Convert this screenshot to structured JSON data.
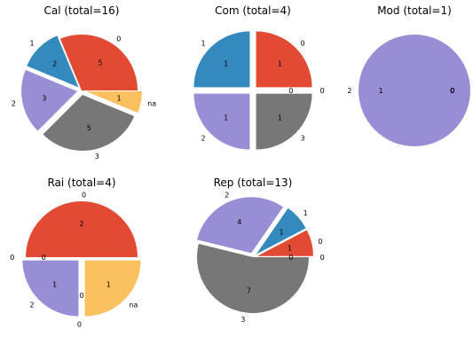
{
  "colors": {
    "0": "#E24A33",
    "1": "#348ABD",
    "2": "#988ED5",
    "3": "#777777",
    "na": "#FBC15E"
  },
  "chart_data": [
    {
      "type": "pie",
      "title": "Cal (total=16)",
      "slices": [
        {
          "label": "0",
          "value": 5,
          "exploded": false
        },
        {
          "label": "1",
          "value": 2,
          "exploded": true
        },
        {
          "label": "2",
          "value": 3,
          "exploded": true
        },
        {
          "label": "3",
          "value": 5,
          "exploded": true
        },
        {
          "label": "na",
          "value": 1,
          "exploded": true
        }
      ]
    },
    {
      "type": "pie",
      "title": "Com (total=4)",
      "slices": [
        {
          "label": "0",
          "value": 1,
          "exploded": true
        },
        {
          "label": "1",
          "value": 1,
          "exploded": true
        },
        {
          "label": "2",
          "value": 1,
          "exploded": true
        },
        {
          "label": "3",
          "value": 1,
          "exploded": true
        },
        {
          "label": "0",
          "value": 0,
          "exploded": true
        }
      ]
    },
    {
      "type": "pie",
      "title": "Mod (total=1)",
      "slices": [
        {
          "label": "2",
          "value": 1,
          "exploded": false
        },
        {
          "label": "0",
          "value": 0,
          "exploded": true
        },
        {
          "label": "0",
          "value": 0,
          "exploded": true
        },
        {
          "label": "0",
          "value": 0,
          "exploded": true
        },
        {
          "label": "0",
          "value": 0,
          "exploded": true
        }
      ]
    },
    {
      "type": "pie",
      "title": "Rai (total=4)",
      "slices": [
        {
          "label": "0",
          "value": 2,
          "exploded": false
        },
        {
          "label": "0",
          "value": 0,
          "exploded": true
        },
        {
          "label": "2",
          "value": 1,
          "exploded": true
        },
        {
          "label": "0",
          "value": 0,
          "exploded": true
        },
        {
          "label": "na",
          "value": 1,
          "exploded": true
        }
      ]
    },
    {
      "type": "pie",
      "title": "Rep (total=13)",
      "slices": [
        {
          "label": "0",
          "value": 1,
          "exploded": true
        },
        {
          "label": "1",
          "value": 1,
          "exploded": true
        },
        {
          "label": "2",
          "value": 4,
          "exploded": true
        },
        {
          "label": "3",
          "value": 7,
          "exploded": false
        },
        {
          "label": "0",
          "value": 0,
          "exploded": true
        }
      ]
    }
  ]
}
